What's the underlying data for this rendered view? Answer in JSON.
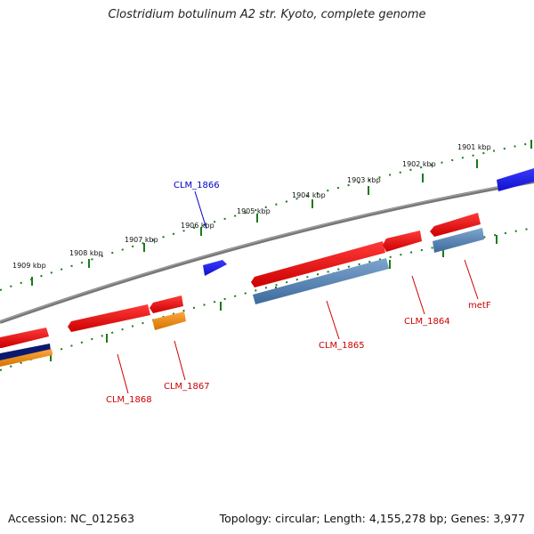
{
  "header": {
    "title": "Clostridium botulinum A2 str. Kyoto, complete genome"
  },
  "footer": {
    "accession": "Accession: NC_012563",
    "summary": "Topology: circular; Length: 4,155,278 bp; Genes: 3,977"
  },
  "colors": {
    "backbone": "#808080",
    "tick": "#1a7a1a",
    "forward_cds": "#ee1111",
    "reverse_cds": "#4f80b4",
    "highlight_gene": "#1c1cf2",
    "rna": "#f08c12",
    "dark_feature": "#0a1a6a"
  },
  "scale_labels": [
    "1901 kbp",
    "1902 kbp",
    "1903 kbp",
    "1904 kbp",
    "1905 kbp",
    "1906 kbp",
    "1907 kbp",
    "1908 kbp",
    "1909 kbp"
  ],
  "gene_labels": [
    {
      "text": "CLM_1866",
      "color": "#0000cc"
    },
    {
      "text": "metF",
      "color": "#cc0000"
    },
    {
      "text": "CLM_1864",
      "color": "#cc0000"
    },
    {
      "text": "CLM_1865",
      "color": "#cc0000"
    },
    {
      "text": "CLM_1867",
      "color": "#cc0000"
    },
    {
      "text": "CLM_1868",
      "color": "#cc0000"
    }
  ]
}
